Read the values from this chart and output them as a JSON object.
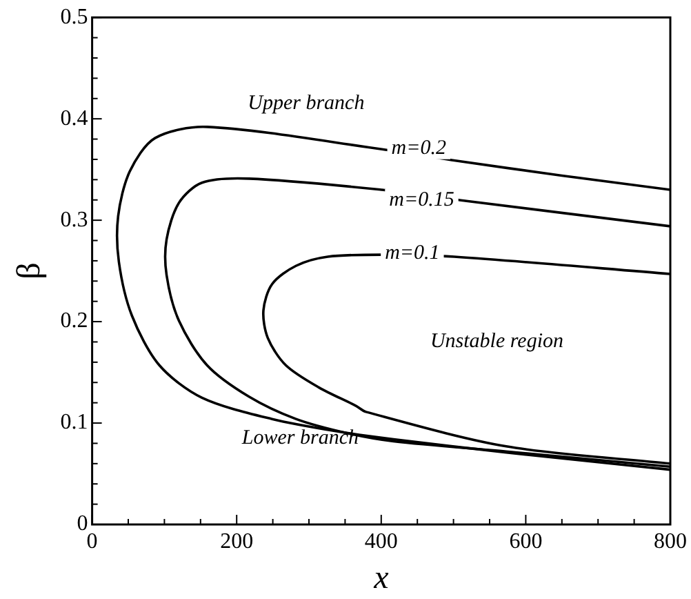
{
  "chart_data": {
    "type": "line",
    "xlabel": "x",
    "ylabel": "β",
    "xlim": [
      0,
      800
    ],
    "ylim": [
      0,
      0.5
    ],
    "xticks": [
      0,
      {
        "value": 50,
        "label": null
      },
      {
        "value": 100,
        "label": null
      },
      {
        "value": 150,
        "label": null
      },
      200,
      {
        "value": 250,
        "label": null
      },
      {
        "value": 300,
        "label": null
      },
      {
        "value": 350,
        "label": null
      },
      400,
      {
        "value": 450,
        "label": null
      },
      {
        "value": 500,
        "label": null
      },
      {
        "value": 550,
        "label": null
      },
      600,
      {
        "value": 650,
        "label": null
      },
      {
        "value": 700,
        "label": null
      },
      {
        "value": 750,
        "label": null
      },
      800
    ],
    "yticks": [
      0,
      {
        "value": 0.02,
        "label": null
      },
      {
        "value": 0.04,
        "label": null
      },
      {
        "value": 0.06,
        "label": null
      },
      {
        "value": 0.08,
        "label": null
      },
      0.1,
      {
        "value": 0.12,
        "label": null
      },
      {
        "value": 0.14,
        "label": null
      },
      {
        "value": 0.16,
        "label": null
      },
      {
        "value": 0.18,
        "label": null
      },
      0.2,
      {
        "value": 0.22,
        "label": null
      },
      {
        "value": 0.24,
        "label": null
      },
      {
        "value": 0.26,
        "label": null
      },
      {
        "value": 0.28,
        "label": null
      },
      0.3,
      {
        "value": 0.32,
        "label": null
      },
      {
        "value": 0.34,
        "label": null
      },
      {
        "value": 0.36,
        "label": null
      },
      {
        "value": 0.38,
        "label": null
      },
      0.4,
      {
        "value": 0.42,
        "label": null
      },
      {
        "value": 0.44,
        "label": null
      },
      {
        "value": 0.46,
        "label": null
      },
      {
        "value": 0.48,
        "label": null
      },
      0.5
    ],
    "grid": false,
    "legend": false,
    "marker": "none",
    "line_style": "solid",
    "series": [
      {
        "color": "#000000",
        "x": [
          800,
          650,
          501,
          401,
          159,
          87,
          52,
          36,
          37,
          55,
          93,
          152,
          249,
          346,
          417,
          573,
          800
        ],
        "values": [
          0.33,
          0.344,
          0.359,
          0.37,
          0.392,
          0.381,
          0.348,
          0.304,
          0.259,
          0.206,
          0.157,
          0.125,
          0.104,
          0.091,
          0.084,
          0.071,
          0.054
        ]
      },
      {
        "color": "#000000",
        "x": [
          800,
          518,
          401,
          217,
          152,
          120,
          103,
          103,
          120,
          159,
          217,
          282,
          353,
          417,
          573,
          800
        ],
        "values": [
          0.294,
          0.319,
          0.33,
          0.341,
          0.337,
          0.317,
          0.281,
          0.246,
          0.201,
          0.157,
          0.126,
          0.104,
          0.09,
          0.082,
          0.072,
          0.057
        ]
      },
      {
        "color": "#000000",
        "x": [
          800,
          501,
          401,
          326,
          282,
          249,
          237,
          243,
          268,
          314,
          365,
          379,
          573,
          800
        ],
        "values": [
          0.247,
          0.264,
          0.266,
          0.264,
          0.255,
          0.237,
          0.211,
          0.184,
          0.157,
          0.135,
          0.117,
          0.111,
          0.077,
          0.06
        ]
      }
    ],
    "annotations": [
      "Upper branch",
      {
        "text": "m=0.2",
        "x": 452,
        "y": 0.371
      },
      {
        "text": "m=0.15",
        "x": 456,
        "y": 0.32
      },
      {
        "text": "m=0.1",
        "x": 443,
        "y": 0.267
      },
      "Unstable region",
      "Lower branch"
    ]
  }
}
